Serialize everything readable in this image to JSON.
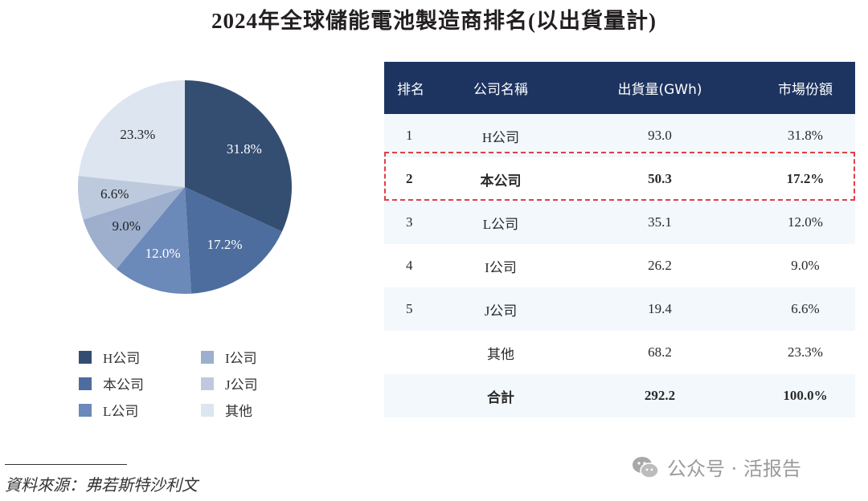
{
  "title": "2024年全球儲能電池製造商排名(以出貨量計)",
  "chart_data": {
    "type": "pie",
    "title": "2024年全球儲能電池製造商排名(以出貨量計)",
    "categories": [
      "H公司",
      "本公司",
      "L公司",
      "I公司",
      "J公司",
      "其他"
    ],
    "values": [
      31.8,
      17.2,
      12.0,
      9.0,
      6.6,
      23.3
    ],
    "labels": [
      "31.8%",
      "17.2%",
      "12.0%",
      "9.0%",
      "6.6%",
      "23.3%"
    ],
    "colors": [
      "#344e72",
      "#4d6d9e",
      "#6b89b9",
      "#9dafcd",
      "#bdcade",
      "#dde5f0"
    ],
    "start_angle": "12 o'clock",
    "direction": "clockwise",
    "legend_position": "bottom"
  },
  "legend": [
    {
      "label": "H公司",
      "color": "#344e72"
    },
    {
      "label": "本公司",
      "color": "#4d6d9e"
    },
    {
      "label": "L公司",
      "color": "#6b89b9"
    },
    {
      "label": "I公司",
      "color": "#9dafcd"
    },
    {
      "label": "J公司",
      "color": "#bdcade"
    },
    {
      "label": "其他",
      "color": "#dde5f0"
    }
  ],
  "table": {
    "headers": [
      "排名",
      "公司名稱",
      "出貨量(GWh)",
      "市場份額"
    ],
    "rows": [
      {
        "rank": "1",
        "name": "H公司",
        "shipment": "93.0",
        "share": "31.8%"
      },
      {
        "rank": "2",
        "name": "本公司",
        "shipment": "50.3",
        "share": "17.2%"
      },
      {
        "rank": "3",
        "name": "L公司",
        "shipment": "35.1",
        "share": "12.0%"
      },
      {
        "rank": "4",
        "name": "I公司",
        "shipment": "26.2",
        "share": "9.0%"
      },
      {
        "rank": "5",
        "name": "J公司",
        "shipment": "19.4",
        "share": "6.6%"
      },
      {
        "rank": "",
        "name": "其他",
        "shipment": "68.2",
        "share": "23.3%"
      },
      {
        "rank": "",
        "name": "合計",
        "shipment": "292.2",
        "share": "100.0%"
      }
    ],
    "header_color": "#1d3461",
    "highlight_color": "#e0404a"
  },
  "source": "資料來源：弗若斯特沙利文",
  "watermark": "公众号 · 活报告"
}
